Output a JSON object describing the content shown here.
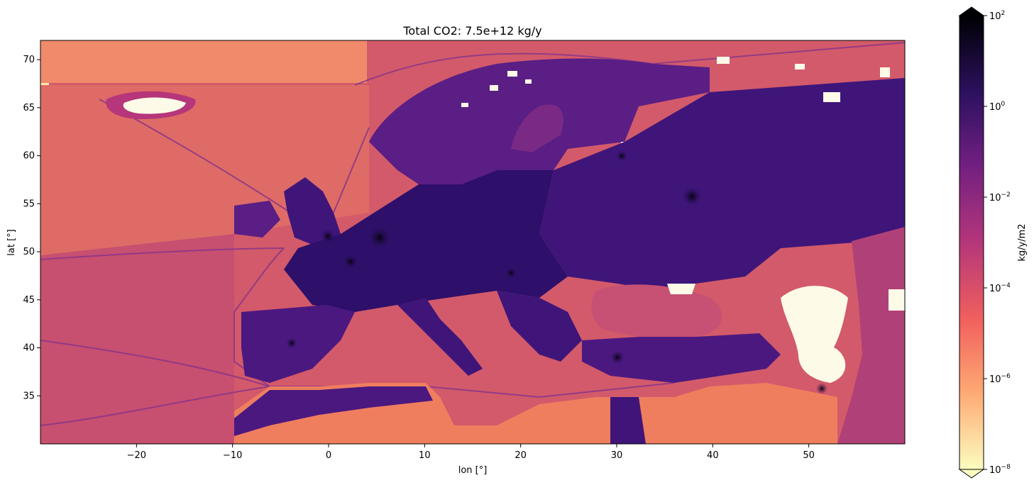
{
  "map": {
    "title": "Total CO2: 7.5e+12 kg/y",
    "xlabel": "lon [°]",
    "ylabel": "lat [°]",
    "x_range": [
      -30,
      60
    ],
    "y_range": [
      30,
      72
    ],
    "x_ticks": [
      {
        "value": -20,
        "label": "−20"
      },
      {
        "value": -10,
        "label": "−10"
      },
      {
        "value": 0,
        "label": "0"
      },
      {
        "value": 10,
        "label": "10"
      },
      {
        "value": 20,
        "label": "20"
      },
      {
        "value": 30,
        "label": "30"
      },
      {
        "value": 40,
        "label": "40"
      },
      {
        "value": 50,
        "label": "50"
      }
    ],
    "y_ticks": [
      {
        "value": 35,
        "label": "35"
      },
      {
        "value": 40,
        "label": "40"
      },
      {
        "value": 45,
        "label": "45"
      },
      {
        "value": 50,
        "label": "50"
      },
      {
        "value": 55,
        "label": "55"
      },
      {
        "value": 60,
        "label": "60"
      },
      {
        "value": 65,
        "label": "65"
      },
      {
        "value": 70,
        "label": "70"
      }
    ],
    "colorbar": {
      "label": "kg/y/m2",
      "colormap": "magma_r",
      "scale": "log",
      "extend": "both",
      "ticks": [
        {
          "exponent": 2,
          "base": "10",
          "sup": "2"
        },
        {
          "exponent": 0,
          "base": "10",
          "sup": "0"
        },
        {
          "exponent": -2,
          "base": "10",
          "sup": "−2"
        },
        {
          "exponent": -4,
          "base": "10",
          "sup": "−4"
        },
        {
          "exponent": -6,
          "base": "10",
          "sup": "−6"
        },
        {
          "exponent": -8,
          "base": "10",
          "sup": "−8"
        }
      ],
      "colors": [
        "#fcfdbf",
        "#fea973",
        "#f1605d",
        "#b5367a",
        "#721f81",
        "#2c115f",
        "#000004"
      ]
    }
  }
}
